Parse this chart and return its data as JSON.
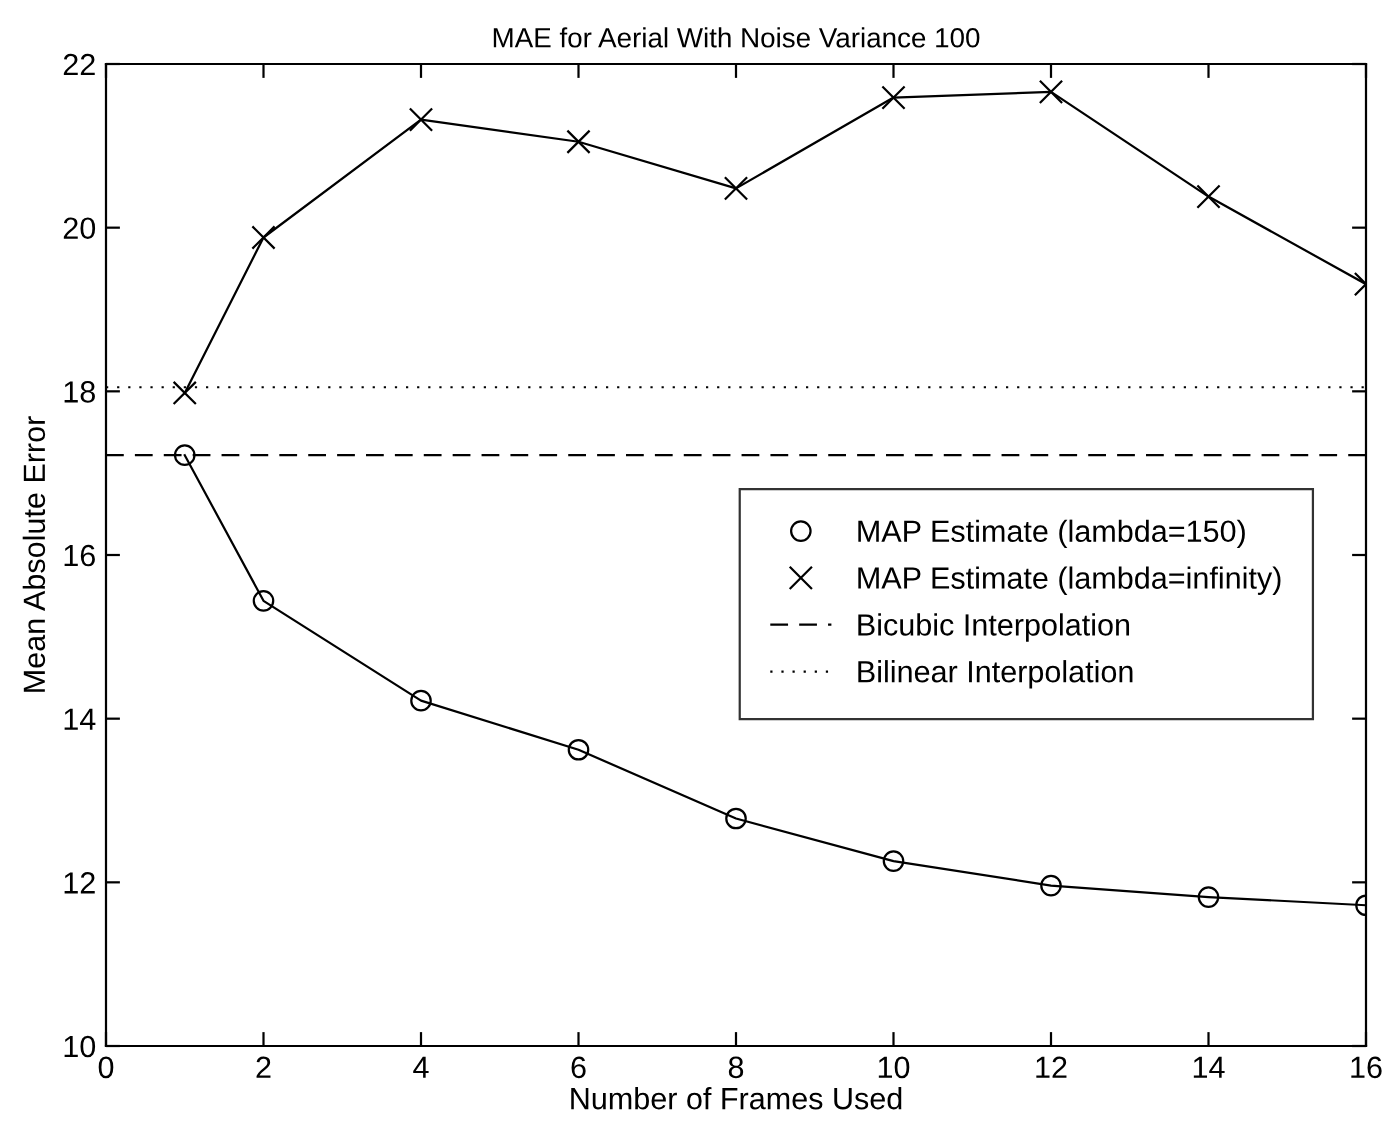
{
  "chart_data": {
    "type": "line",
    "title": "MAE for Aerial With Noise Variance 100",
    "xlabel": "Number of Frames Used",
    "ylabel": "Mean Absolute Error",
    "x": [
      1,
      2,
      4,
      6,
      8,
      10,
      12,
      14,
      16
    ],
    "series": [
      {
        "name": "MAP Estimate (lambda=150)",
        "color": "#000000",
        "marker": "circle",
        "values": [
          17.22,
          15.44,
          14.22,
          13.62,
          12.78,
          12.26,
          11.96,
          11.82,
          11.72
        ]
      },
      {
        "name": "MAP Estimate (lambda=infinity)",
        "color": "#000000",
        "marker": "cross",
        "values": [
          17.98,
          19.88,
          21.32,
          21.05,
          20.48,
          21.59,
          21.66,
          20.38,
          19.31
        ]
      }
    ],
    "ref_lines": [
      {
        "axis": "y",
        "value": 17.22,
        "label": "Bicubic Interpolation",
        "color": "#000000",
        "line_style": "dashed"
      },
      {
        "axis": "y",
        "value": 18.05,
        "label": "Bilinear Interpolation",
        "color": "#000000",
        "line_style": "dotted"
      }
    ],
    "xlim": [
      0,
      16
    ],
    "xticks": [
      0,
      2,
      4,
      6,
      8,
      10,
      12,
      14,
      16
    ],
    "ylim": [
      10,
      22
    ],
    "yticks": [
      10,
      12,
      14,
      16,
      18,
      20,
      22
    ],
    "grid": false,
    "legend": "right",
    "line_style": "solid"
  }
}
